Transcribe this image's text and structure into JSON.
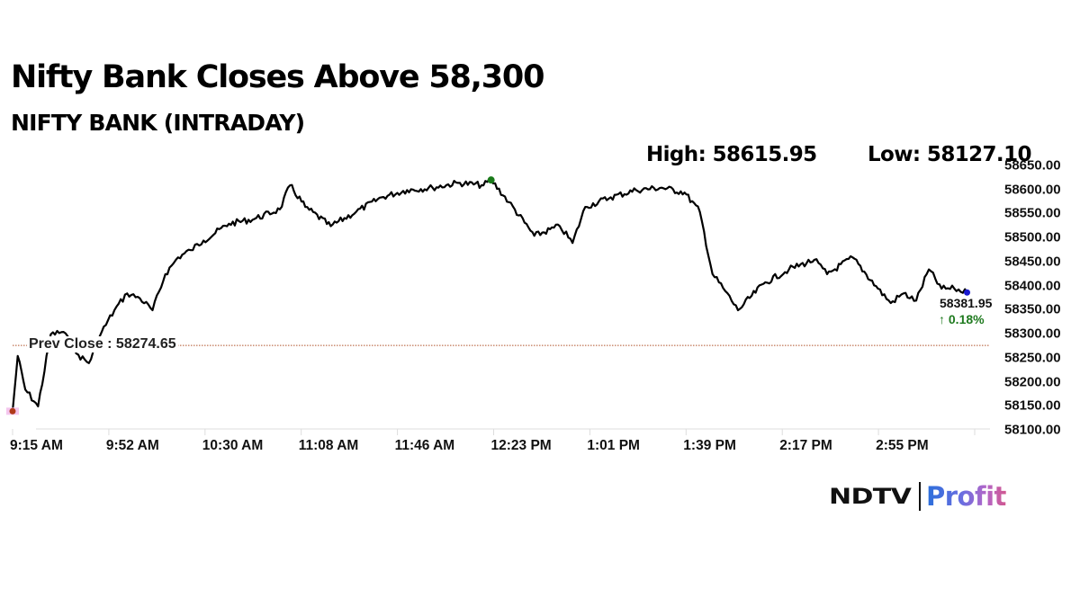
{
  "header": {
    "title": "Nifty Bank Closes Above 58,300",
    "subtitle": "NIFTY BANK (INTRADAY)"
  },
  "stats": {
    "high": "High: 58615.95",
    "low": "Low: 58127.10"
  },
  "annotations": {
    "prev_close": "Prev Close : 58274.65",
    "last_price": "58381.95",
    "change": "↑ 0.18%"
  },
  "colors": {
    "line": "#000000",
    "high_marker": "#1a7a1a",
    "open_marker": "#b03a1a",
    "open_marker_bg": "#f4c6ee",
    "last_marker": "#1a1ad0",
    "prev_close_line": "#b0522a",
    "change_positive": "#1f7a1f",
    "axis": "#dddddd"
  },
  "logo": {
    "brand": "NDTV",
    "product": "Profit"
  },
  "chart_data": {
    "type": "line",
    "title": "Nifty Bank Closes Above 58,300",
    "subtitle": "NIFTY BANK (INTRADAY)",
    "xlabel": "",
    "ylabel": "",
    "ylim": [
      58100,
      58650
    ],
    "grid": false,
    "legend": "none",
    "x_ticks": [
      "9:15 AM",
      "9:52 AM",
      "10:30 AM",
      "11:08 AM",
      "11:46 AM",
      "12:23 PM",
      "1:01 PM",
      "1:39 PM",
      "2:17 PM",
      "2:55 PM"
    ],
    "y_ticks": [
      "58650.00",
      "58600.00",
      "58550.00",
      "58500.00",
      "58450.00",
      "58400.00",
      "58350.00",
      "58300.00",
      "58250.00",
      "58200.00",
      "58150.00",
      "58100.00"
    ],
    "high": 58615.95,
    "low": 58127.1,
    "prev_close": 58274.65,
    "close": 58381.95,
    "change_pct": 0.18,
    "series": [
      {
        "name": "NIFTY BANK",
        "x": [
          "9:15 AM",
          "9:17 AM",
          "9:20 AM",
          "9:25 AM",
          "9:30 AM",
          "9:35 AM",
          "9:40 AM",
          "9:45 AM",
          "9:50 AM",
          "9:55 AM",
          "10:00 AM",
          "10:05 AM",
          "10:10 AM",
          "10:15 AM",
          "10:20 AM",
          "10:25 AM",
          "10:30 AM",
          "10:40 AM",
          "10:50 AM",
          "11:00 AM",
          "11:04 AM",
          "11:10 AM",
          "11:20 AM",
          "11:30 AM",
          "11:40 AM",
          "11:50 AM",
          "12:00 PM",
          "12:10 PM",
          "12:20 PM",
          "12:23 PM",
          "12:30 PM",
          "12:40 PM",
          "12:50 PM",
          "12:55 PM",
          "1:00 PM",
          "1:10 PM",
          "1:20 PM",
          "1:30 PM",
          "1:39 PM",
          "1:45 PM",
          "1:50 PM",
          "1:55 PM",
          "2:00 PM",
          "2:10 PM",
          "2:20 PM",
          "2:30 PM",
          "2:35 PM",
          "2:45 PM",
          "2:55 PM",
          "3:00 PM",
          "3:05 PM",
          "3:10 PM",
          "3:15 PM",
          "3:20 PM",
          "3:25 PM",
          "3:30 PM"
        ],
        "values": [
          58135,
          58250,
          58180,
          58145,
          58295,
          58300,
          58255,
          58235,
          58300,
          58345,
          58380,
          58370,
          58345,
          58420,
          58455,
          58470,
          58490,
          58525,
          58535,
          58555,
          58605,
          58560,
          58520,
          58550,
          58580,
          58595,
          58600,
          58610,
          58605,
          58616,
          58570,
          58500,
          58520,
          58485,
          58560,
          58580,
          58595,
          58600,
          58590,
          58550,
          58420,
          58385,
          58345,
          58400,
          58430,
          58450,
          58420,
          58455,
          58390,
          58360,
          58380,
          58365,
          58430,
          58390,
          58390,
          58382
        ]
      }
    ]
  }
}
